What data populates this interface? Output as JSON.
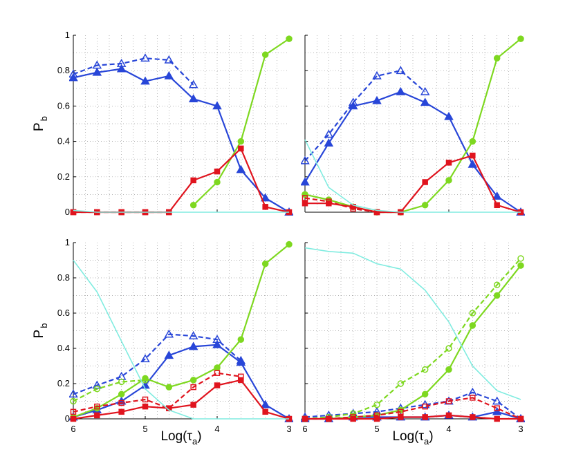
{
  "chart_data": [
    {
      "type": "line",
      "panel": "top-left",
      "xlabel": "",
      "ylabel": "P_b",
      "xlim": [
        6,
        3
      ],
      "ylim": [
        0,
        1
      ],
      "x": [
        6,
        5.67,
        5.33,
        5,
        4.67,
        4.33,
        4,
        3.67,
        3.33,
        3
      ],
      "series": [
        {
          "name": "blue-solid-triangle",
          "values": [
            0.76,
            0.79,
            0.81,
            0.74,
            0.77,
            0.64,
            0.6,
            0.24,
            0.08,
            0.0
          ]
        },
        {
          "name": "blue-dashed-triangle",
          "values": [
            0.78,
            0.83,
            0.84,
            0.87,
            0.86,
            0.72,
            null,
            null,
            null,
            null
          ]
        },
        {
          "name": "green-solid-circle",
          "values": [
            null,
            null,
            null,
            null,
            null,
            0.04,
            0.17,
            0.4,
            0.89,
            0.98
          ]
        },
        {
          "name": "red-solid-square",
          "values": [
            0.0,
            0.0,
            0.0,
            0.0,
            0.0,
            0.18,
            0.23,
            0.36,
            0.03,
            0.0
          ]
        },
        {
          "name": "red-dashed-square",
          "values": [
            0.0,
            0.0,
            0.0,
            0.0,
            0.0,
            null,
            null,
            null,
            null,
            null
          ]
        },
        {
          "name": "cyan-line",
          "values": [
            0.01,
            0.0,
            0.0,
            0.0,
            0.0,
            0.0,
            0.0,
            0.0,
            0.0,
            0.0
          ]
        }
      ]
    },
    {
      "type": "line",
      "panel": "top-right",
      "xlabel": "",
      "ylabel": "",
      "xlim": [
        6,
        3
      ],
      "ylim": [
        0,
        1
      ],
      "x": [
        6,
        5.67,
        5.33,
        5,
        4.67,
        4.33,
        4,
        3.67,
        3.33,
        3
      ],
      "series": [
        {
          "name": "blue-solid-triangle",
          "values": [
            0.17,
            0.39,
            0.6,
            0.63,
            0.68,
            0.62,
            0.54,
            0.27,
            0.09,
            0.0
          ]
        },
        {
          "name": "blue-dashed-triangle",
          "values": [
            0.29,
            0.44,
            0.62,
            0.77,
            0.8,
            0.68,
            null,
            null,
            null,
            null
          ]
        },
        {
          "name": "green-solid-circle",
          "values": [
            0.1,
            0.07,
            0.03,
            0.0,
            0.0,
            0.04,
            0.18,
            0.4,
            0.87,
            0.98
          ]
        },
        {
          "name": "green-dashed-circle",
          "values": [
            0.1,
            0.07,
            0.03,
            null,
            null,
            null,
            null,
            null,
            null,
            null
          ]
        },
        {
          "name": "red-solid-square",
          "values": [
            0.05,
            0.05,
            0.03,
            0.0,
            0.0,
            0.17,
            0.28,
            0.32,
            0.04,
            0.0
          ]
        },
        {
          "name": "red-dashed-square",
          "values": [
            0.08,
            0.06,
            0.02,
            0.0,
            0.0,
            null,
            null,
            null,
            null,
            null
          ]
        },
        {
          "name": "cyan-line",
          "values": [
            0.41,
            0.14,
            0.04,
            0.01,
            0.0,
            0.0,
            0.0,
            0.0,
            0.0,
            0.0
          ]
        }
      ]
    },
    {
      "type": "line",
      "panel": "bottom-left",
      "xlabel": "Log(τ_a)",
      "ylabel": "P_b",
      "xlim": [
        6,
        3
      ],
      "ylim": [
        0,
        1
      ],
      "x": [
        6,
        5.67,
        5.33,
        5,
        4.67,
        4.33,
        4,
        3.67,
        3.33,
        3
      ],
      "series": [
        {
          "name": "blue-solid-triangle",
          "values": [
            0.01,
            0.05,
            0.1,
            0.19,
            0.36,
            0.41,
            0.42,
            0.32,
            0.08,
            0.0
          ]
        },
        {
          "name": "blue-dashed-triangle",
          "values": [
            0.14,
            0.19,
            0.24,
            0.34,
            0.48,
            0.47,
            0.45,
            0.33,
            null,
            null
          ]
        },
        {
          "name": "green-solid-circle",
          "values": [
            0.01,
            0.06,
            0.14,
            0.23,
            0.18,
            0.22,
            0.29,
            0.45,
            0.88,
            0.99
          ]
        },
        {
          "name": "green-dashed-circle",
          "values": [
            0.1,
            0.17,
            0.21,
            0.22,
            null,
            null,
            null,
            null,
            null,
            null
          ]
        },
        {
          "name": "red-solid-square",
          "values": [
            0.0,
            0.02,
            0.04,
            0.07,
            0.06,
            0.08,
            0.19,
            0.22,
            0.04,
            0.0
          ]
        },
        {
          "name": "red-dashed-square",
          "values": [
            0.04,
            0.07,
            0.09,
            0.11,
            0.06,
            0.18,
            0.26,
            0.24,
            null,
            null
          ]
        },
        {
          "name": "cyan-line",
          "values": [
            0.9,
            0.72,
            0.44,
            0.17,
            0.05,
            0.0,
            0.0,
            0.0,
            0.0,
            0.0
          ]
        }
      ]
    },
    {
      "type": "line",
      "panel": "bottom-right",
      "xlabel": "Log(τ_a)",
      "ylabel": "",
      "xlim": [
        6,
        3
      ],
      "ylim": [
        0,
        1
      ],
      "x": [
        6,
        5.67,
        5.33,
        5,
        4.67,
        4.33,
        4,
        3.67,
        3.33,
        3
      ],
      "series": [
        {
          "name": "blue-solid-triangle",
          "values": [
            0.0,
            0.0,
            0.01,
            0.01,
            0.01,
            0.01,
            0.02,
            0.01,
            0.04,
            0.0
          ]
        },
        {
          "name": "blue-dashed-triangle",
          "values": [
            0.01,
            0.02,
            0.03,
            0.04,
            0.06,
            0.08,
            0.1,
            0.15,
            0.1,
            0.0
          ]
        },
        {
          "name": "green-solid-circle",
          "values": [
            0.0,
            0.0,
            0.01,
            0.02,
            0.05,
            0.14,
            0.28,
            0.53,
            0.7,
            0.87
          ]
        },
        {
          "name": "green-dashed-circle",
          "values": [
            0.0,
            0.01,
            0.03,
            0.08,
            0.2,
            0.28,
            0.4,
            0.6,
            0.76,
            0.91
          ]
        },
        {
          "name": "red-solid-square",
          "values": [
            0.0,
            0.0,
            0.0,
            0.0,
            0.01,
            0.01,
            0.02,
            0.01,
            0.0,
            0.0
          ]
        },
        {
          "name": "red-dashed-square",
          "values": [
            0.0,
            0.0,
            0.01,
            0.02,
            0.04,
            0.07,
            0.1,
            0.12,
            0.06,
            0.0
          ]
        },
        {
          "name": "cyan-line",
          "values": [
            0.97,
            0.95,
            0.94,
            0.88,
            0.85,
            0.73,
            0.55,
            0.3,
            0.16,
            0.11
          ]
        }
      ]
    }
  ],
  "colors": {
    "blue-solid-triangle": "#2846d8",
    "blue-dashed-triangle": "#2846d8",
    "green-solid-circle": "#7ed820",
    "green-dashed-circle": "#7ed820",
    "red-solid-square": "#e0141e",
    "red-dashed-square": "#e0141e",
    "cyan-line": "#80ece0",
    "grid": "#9a9a9a",
    "axis": "#000000"
  },
  "axis_text": {
    "y_ticks": [
      "0",
      "0.2",
      "0.4",
      "0.6",
      "0.8",
      "1"
    ],
    "x_ticks": [
      "6",
      "5",
      "4",
      "3"
    ],
    "ylabel_main": "P",
    "ylabel_sub": "b",
    "xlabel_main": "Log(τ",
    "xlabel_sub": "a",
    "xlabel_close": ")"
  }
}
